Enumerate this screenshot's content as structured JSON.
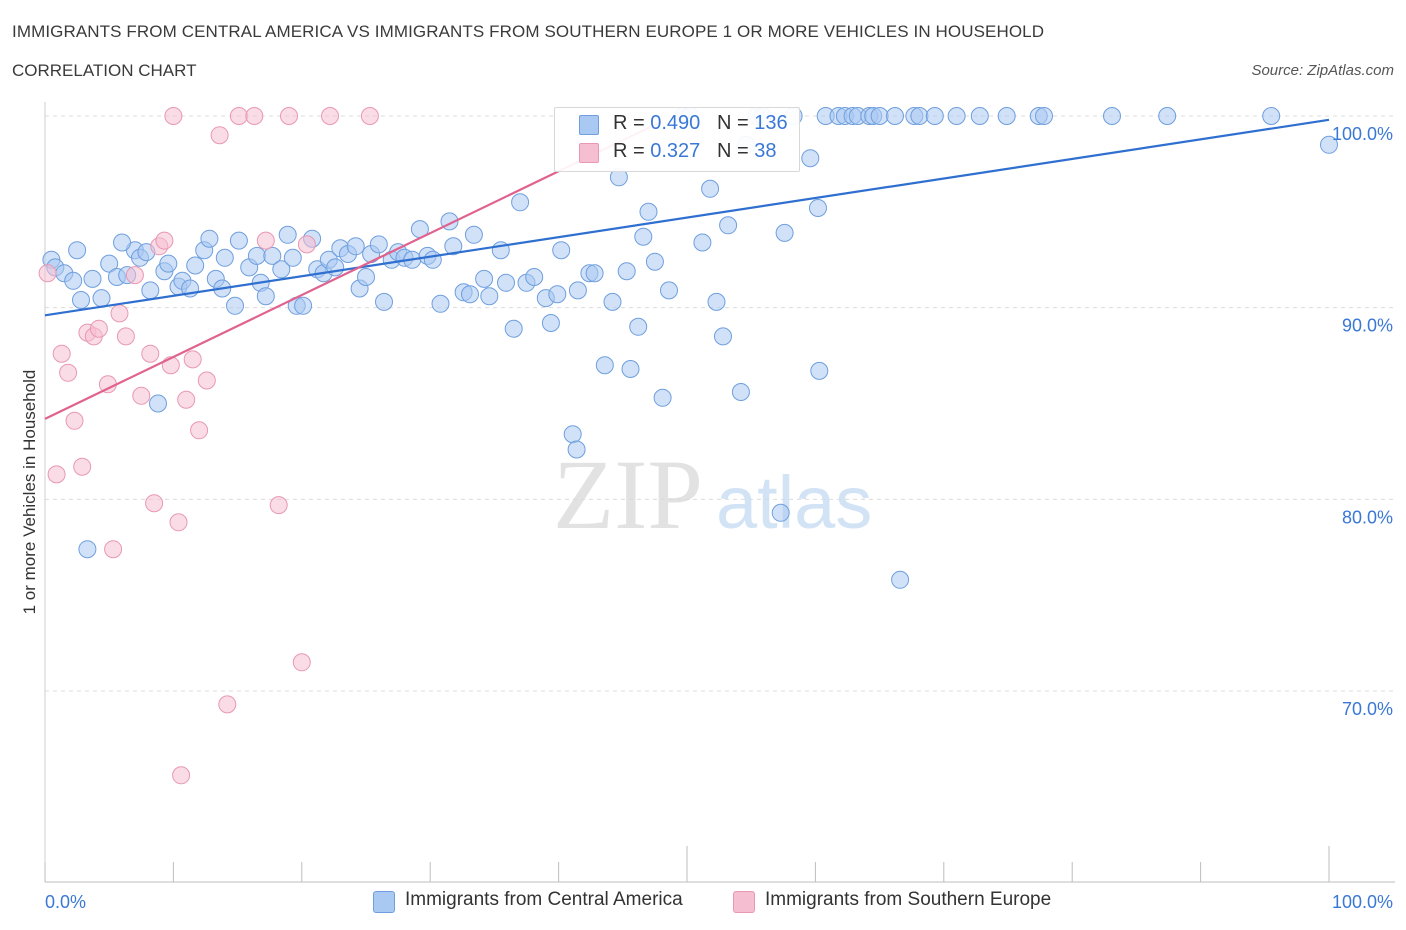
{
  "header": {
    "title": "IMMIGRANTS FROM CENTRAL AMERICA VS IMMIGRANTS FROM SOUTHERN EUROPE 1 OR MORE VEHICLES IN HOUSEHOLD",
    "subtitle": "CORRELATION CHART",
    "source": "Source: ZipAtlas.com"
  },
  "legend_box": {
    "rows": [
      {
        "r_label": "R = ",
        "r_value": "0.490",
        "n_label": "N = ",
        "n_value": "136"
      },
      {
        "r_label": "R = ",
        "r_value": "0.327",
        "n_label": "N = ",
        "n_value": "38"
      }
    ]
  },
  "bottom_legend": {
    "series_a": "Immigrants from Central America",
    "series_b": "Immigrants from Southern Europe"
  },
  "watermark": {
    "zip": "ZIP",
    "atlas": "atlas"
  },
  "colors": {
    "blue_fill": "#a9c8f2",
    "blue_stroke": "#6f9fde",
    "blue_line": "#2f6fd0",
    "pink_fill": "#f6bfd1",
    "pink_stroke": "#e898b4",
    "pink_line": "#e0628e",
    "axis_text": "#3a78d6",
    "grid": "#dcdcdc"
  },
  "chart_data": {
    "type": "scatter",
    "xlabel": "",
    "ylabel": "1 or more Vehicles in Household",
    "xlim": [
      0,
      100
    ],
    "ylim": [
      60,
      100
    ],
    "x_tick_labels": [
      {
        "x": 0,
        "label": "0.0%"
      },
      {
        "x": 100,
        "label": "100.0%"
      }
    ],
    "y_tick_labels": [
      {
        "y": 70,
        "label": "70.0%"
      },
      {
        "y": 80,
        "label": "80.0%"
      },
      {
        "y": 90,
        "label": "90.0%"
      },
      {
        "y": 100,
        "label": "100.0%"
      }
    ],
    "grid": true,
    "series": [
      {
        "name": "Immigrants from Central America",
        "color": "#a9c8f2",
        "R": 0.49,
        "N": 136,
        "trend": {
          "x": [
            0,
            100
          ],
          "y": [
            89.6,
            99.8
          ]
        },
        "points": [
          [
            0.5,
            92.5
          ],
          [
            0.8,
            92.1
          ],
          [
            1.5,
            91.8
          ],
          [
            2.2,
            91.4
          ],
          [
            2.8,
            90.4
          ],
          [
            3.7,
            91.5
          ],
          [
            4.4,
            90.5
          ],
          [
            5.0,
            92.3
          ],
          [
            5.6,
            91.6
          ],
          [
            6.4,
            91.7
          ],
          [
            7.0,
            93.0
          ],
          [
            7.4,
            92.6
          ],
          [
            7.9,
            92.9
          ],
          [
            8.2,
            90.9
          ],
          [
            9.3,
            91.9
          ],
          [
            9.6,
            92.3
          ],
          [
            10.4,
            91.1
          ],
          [
            10.7,
            91.4
          ],
          [
            11.3,
            91.0
          ],
          [
            11.7,
            92.2
          ],
          [
            12.4,
            93.0
          ],
          [
            12.8,
            93.6
          ],
          [
            13.3,
            91.5
          ],
          [
            13.8,
            91.0
          ],
          [
            14.8,
            90.1
          ],
          [
            15.1,
            93.5
          ],
          [
            15.9,
            92.1
          ],
          [
            16.5,
            92.7
          ],
          [
            16.8,
            91.3
          ],
          [
            17.2,
            90.6
          ],
          [
            17.7,
            92.7
          ],
          [
            18.4,
            92.0
          ],
          [
            18.9,
            93.8
          ],
          [
            19.3,
            92.6
          ],
          [
            19.6,
            90.1
          ],
          [
            20.1,
            90.1
          ],
          [
            21.2,
            92.0
          ],
          [
            21.7,
            91.8
          ],
          [
            22.1,
            92.5
          ],
          [
            22.6,
            92.1
          ],
          [
            23.0,
            93.1
          ],
          [
            23.6,
            92.8
          ],
          [
            24.2,
            93.2
          ],
          [
            24.5,
            91.0
          ],
          [
            25.0,
            91.6
          ],
          [
            25.4,
            92.8
          ],
          [
            26.0,
            93.3
          ],
          [
            26.4,
            90.3
          ],
          [
            27.0,
            92.5
          ],
          [
            27.5,
            92.9
          ],
          [
            28.0,
            92.6
          ],
          [
            28.6,
            92.5
          ],
          [
            29.2,
            94.1
          ],
          [
            29.8,
            92.7
          ],
          [
            30.2,
            92.5
          ],
          [
            30.8,
            90.2
          ],
          [
            31.5,
            94.5
          ],
          [
            31.8,
            93.2
          ],
          [
            32.6,
            90.8
          ],
          [
            33.1,
            90.7
          ],
          [
            33.4,
            93.8
          ],
          [
            34.2,
            91.5
          ],
          [
            34.6,
            90.6
          ],
          [
            35.5,
            93.0
          ],
          [
            35.9,
            91.3
          ],
          [
            36.5,
            88.9
          ],
          [
            37.0,
            95.5
          ],
          [
            37.5,
            91.3
          ],
          [
            38.1,
            91.6
          ],
          [
            39.0,
            90.5
          ],
          [
            39.4,
            89.2
          ],
          [
            39.9,
            90.7
          ],
          [
            41.1,
            83.4
          ],
          [
            41.4,
            82.6
          ],
          [
            41.5,
            90.9
          ],
          [
            42.4,
            91.8
          ],
          [
            42.8,
            91.8
          ],
          [
            43.6,
            87.0
          ],
          [
            44.2,
            90.3
          ],
          [
            44.7,
            96.8
          ],
          [
            45.3,
            91.9
          ],
          [
            45.6,
            86.8
          ],
          [
            46.2,
            89.0
          ],
          [
            46.6,
            93.7
          ],
          [
            47.0,
            95.0
          ],
          [
            47.5,
            92.4
          ],
          [
            48.1,
            85.3
          ],
          [
            48.6,
            90.9
          ],
          [
            49.7,
            100.0
          ],
          [
            50.2,
            100.0
          ],
          [
            51.2,
            93.4
          ],
          [
            51.8,
            96.2
          ],
          [
            52.3,
            90.3
          ],
          [
            52.8,
            88.5
          ],
          [
            53.2,
            94.3
          ],
          [
            54.2,
            85.6
          ],
          [
            54.6,
            98.5
          ],
          [
            55.4,
            100.0
          ],
          [
            55.9,
            100.0
          ],
          [
            57.3,
            79.3
          ],
          [
            57.6,
            93.9
          ],
          [
            58.3,
            100.0
          ],
          [
            59.6,
            97.8
          ],
          [
            60.2,
            95.2
          ],
          [
            60.3,
            86.7
          ],
          [
            60.8,
            100.0
          ],
          [
            61.8,
            100.0
          ],
          [
            62.3,
            100.0
          ],
          [
            62.9,
            100.0
          ],
          [
            63.3,
            100.0
          ],
          [
            64.2,
            100.0
          ],
          [
            64.5,
            100.0
          ],
          [
            65.0,
            100.0
          ],
          [
            66.2,
            100.0
          ],
          [
            66.6,
            75.8
          ],
          [
            67.7,
            100.0
          ],
          [
            68.1,
            100.0
          ],
          [
            69.3,
            100.0
          ],
          [
            71.0,
            100.0
          ],
          [
            72.8,
            100.0
          ],
          [
            74.9,
            100.0
          ],
          [
            77.4,
            100.0
          ],
          [
            77.8,
            100.0
          ],
          [
            83.1,
            100.0
          ],
          [
            87.4,
            100.0
          ],
          [
            95.5,
            100.0
          ],
          [
            100.0,
            98.5
          ],
          [
            3.3,
            77.4
          ],
          [
            8.8,
            85.0
          ],
          [
            2.5,
            93.0
          ],
          [
            6.0,
            93.4
          ],
          [
            14.0,
            92.6
          ],
          [
            20.8,
            93.6
          ],
          [
            40.2,
            93.0
          ]
        ]
      },
      {
        "name": "Immigrants from Southern Europe",
        "color": "#f6bfd1",
        "R": 0.327,
        "N": 38,
        "trend": {
          "x": [
            0,
            48
          ],
          "y": [
            84.2,
            99.7
          ]
        },
        "points": [
          [
            0.2,
            91.8
          ],
          [
            0.9,
            81.3
          ],
          [
            1.3,
            87.6
          ],
          [
            1.8,
            86.6
          ],
          [
            2.3,
            84.1
          ],
          [
            2.9,
            81.7
          ],
          [
            3.3,
            88.7
          ],
          [
            3.8,
            88.5
          ],
          [
            4.2,
            88.9
          ],
          [
            4.9,
            86.0
          ],
          [
            5.3,
            77.4
          ],
          [
            5.8,
            89.7
          ],
          [
            6.3,
            88.5
          ],
          [
            7.0,
            91.7
          ],
          [
            7.5,
            85.4
          ],
          [
            8.2,
            87.6
          ],
          [
            8.5,
            79.8
          ],
          [
            8.9,
            93.2
          ],
          [
            9.3,
            93.5
          ],
          [
            9.8,
            87.0
          ],
          [
            10.4,
            78.8
          ],
          [
            10.6,
            65.6
          ],
          [
            11.0,
            85.2
          ],
          [
            11.5,
            87.3
          ],
          [
            12.0,
            83.6
          ],
          [
            12.6,
            86.2
          ],
          [
            13.6,
            99.0
          ],
          [
            14.2,
            69.3
          ],
          [
            15.1,
            100.0
          ],
          [
            16.3,
            100.0
          ],
          [
            17.2,
            93.5
          ],
          [
            18.2,
            79.7
          ],
          [
            19.0,
            100.0
          ],
          [
            20.0,
            71.5
          ],
          [
            20.4,
            93.3
          ],
          [
            22.2,
            100.0
          ],
          [
            25.3,
            100.0
          ],
          [
            10.0,
            100.0
          ]
        ]
      }
    ]
  }
}
